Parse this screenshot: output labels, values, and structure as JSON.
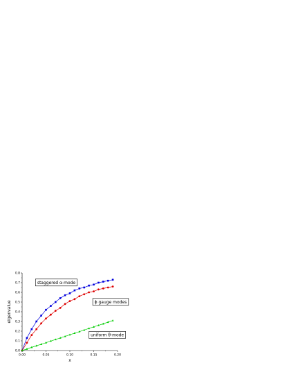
{
  "chart_data": {
    "type": "line",
    "xlabel": "x",
    "ylabel": "eigenvalue",
    "xlim": [
      0,
      0.2
    ],
    "ylim": [
      0,
      0.8
    ],
    "x_ticks": [
      "0.00",
      "0.05",
      "0.10",
      "0.15",
      "0.20"
    ],
    "y_ticks": [
      "0.0",
      "0.1",
      "0.2",
      "0.3",
      "0.4",
      "0.5",
      "0.6",
      "0.7",
      "0.8"
    ],
    "grid": false,
    "series": [
      {
        "color": "#0000dd",
        "marker": "square",
        "x": [
          0,
          0.01,
          0.02,
          0.03,
          0.04,
          0.05,
          0.06,
          0.07,
          0.08,
          0.09,
          0.1,
          0.11,
          0.12,
          0.13,
          0.14,
          0.15,
          0.16,
          0.17,
          0.18,
          0.19
        ],
        "y": [
          0,
          0.13,
          0.22,
          0.3,
          0.36,
          0.42,
          0.46,
          0.5,
          0.54,
          0.57,
          0.59,
          0.62,
          0.64,
          0.65,
          0.67,
          0.68,
          0.7,
          0.71,
          0.72,
          0.73
        ]
      },
      {
        "color": "#dd0000",
        "marker": "circle",
        "x": [
          0,
          0.01,
          0.02,
          0.03,
          0.04,
          0.05,
          0.06,
          0.07,
          0.08,
          0.09,
          0.1,
          0.11,
          0.12,
          0.13,
          0.14,
          0.15,
          0.16,
          0.17,
          0.18,
          0.19
        ],
        "y": [
          0,
          0.08,
          0.16,
          0.22,
          0.28,
          0.33,
          0.37,
          0.41,
          0.44,
          0.48,
          0.51,
          0.53,
          0.56,
          0.58,
          0.6,
          0.61,
          0.63,
          0.64,
          0.65,
          0.66
        ]
      },
      {
        "color": "#00cc00",
        "marker": "triangle",
        "x": [
          0,
          0.01,
          0.02,
          0.03,
          0.04,
          0.05,
          0.06,
          0.07,
          0.08,
          0.09,
          0.1,
          0.11,
          0.12,
          0.13,
          0.14,
          0.15,
          0.16,
          0.17,
          0.18,
          0.19
        ],
        "y": [
          0,
          0.016,
          0.033,
          0.049,
          0.065,
          0.081,
          0.098,
          0.114,
          0.13,
          0.146,
          0.163,
          0.179,
          0.195,
          0.211,
          0.228,
          0.244,
          0.26,
          0.276,
          0.293,
          0.309
        ]
      }
    ],
    "annotations": [
      {
        "text": "staggered α-mode",
        "x": 0.028,
        "y": 0.68
      },
      {
        "text": "ϕ gauge modes",
        "x": 0.148,
        "y": 0.48
      },
      {
        "text": "uniform θ-mode",
        "x": 0.14,
        "y": 0.14
      }
    ]
  }
}
